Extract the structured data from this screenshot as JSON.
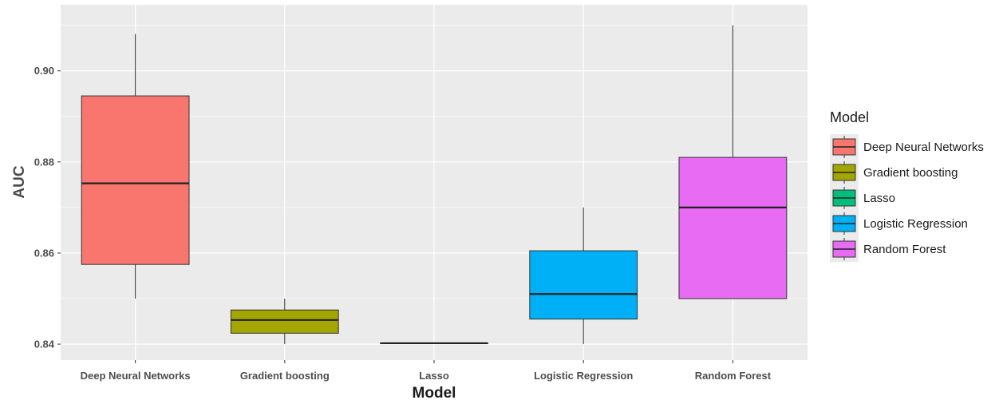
{
  "chart_data": {
    "type": "boxplot",
    "xlabel": "Model",
    "ylabel": "AUC",
    "ylim": [
      0.8365,
      0.9145
    ],
    "yticks": [
      0.84,
      0.86,
      0.88,
      0.9
    ],
    "ytick_labels": [
      "0.84",
      "0.86",
      "0.88",
      "0.90"
    ],
    "categories": [
      "Deep Neural Networks",
      "Gradient boosting",
      "Lasso",
      "Logistic Regression",
      "Random Forest"
    ],
    "series": [
      {
        "name": "Deep Neural Networks",
        "color": "#F8766D",
        "min": 0.85,
        "q1": 0.8575,
        "median": 0.8753,
        "q3": 0.8945,
        "max": 0.9081
      },
      {
        "name": "Gradient boosting",
        "color": "#A3A500",
        "min": 0.84,
        "q1": 0.8424,
        "median": 0.8453,
        "q3": 0.8475,
        "max": 0.85
      },
      {
        "name": "Lasso",
        "color": "#00BF7D",
        "min": 0.8402,
        "q1": 0.8402,
        "median": 0.8402,
        "q3": 0.8402,
        "max": 0.8402
      },
      {
        "name": "Logistic Regression",
        "color": "#00B0F6",
        "min": 0.84,
        "q1": 0.8455,
        "median": 0.851,
        "q3": 0.8605,
        "max": 0.87
      },
      {
        "name": "Random Forest",
        "color": "#E76BF3",
        "min": 0.85,
        "q1": 0.85,
        "median": 0.87,
        "q3": 0.881,
        "max": 0.91
      }
    ],
    "legend": {
      "title": "Model",
      "position": "right"
    },
    "grid": true,
    "panel_background": "#EBEBEB",
    "grid_color": "#FFFFFF"
  }
}
